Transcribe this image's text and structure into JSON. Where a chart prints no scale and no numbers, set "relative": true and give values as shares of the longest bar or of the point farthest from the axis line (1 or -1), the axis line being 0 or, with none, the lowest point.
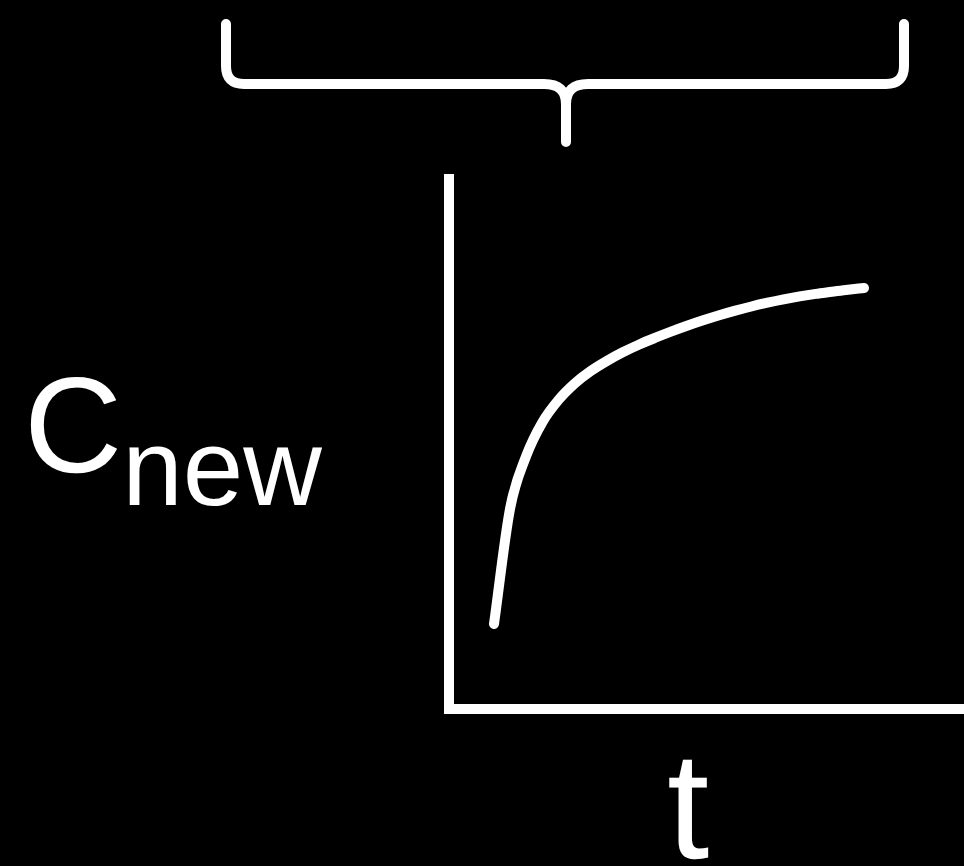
{
  "chart_data": {
    "type": "line",
    "xlabel": "t",
    "ylabel": "C$_{new}$",
    "relative": true,
    "marker": "none",
    "categories": [
      null,
      null,
      null,
      null,
      null,
      null,
      null,
      null,
      null,
      null,
      null,
      null,
      null,
      null,
      null,
      null,
      null,
      null,
      null,
      null,
      null,
      null,
      null,
      null
    ],
    "series": [
      {
        "color": "#ffffff",
        "values": [
          0.2,
          0.475,
          0.6,
          0.68,
          0.733,
          0.772,
          0.802,
          0.826,
          0.847,
          0.865,
          0.881,
          0.896,
          0.91,
          0.923,
          0.935,
          0.946,
          0.956,
          0.965,
          0.973,
          0.98,
          0.986,
          0.991,
          0.996,
          1
        ]
      }
    ]
  }
}
